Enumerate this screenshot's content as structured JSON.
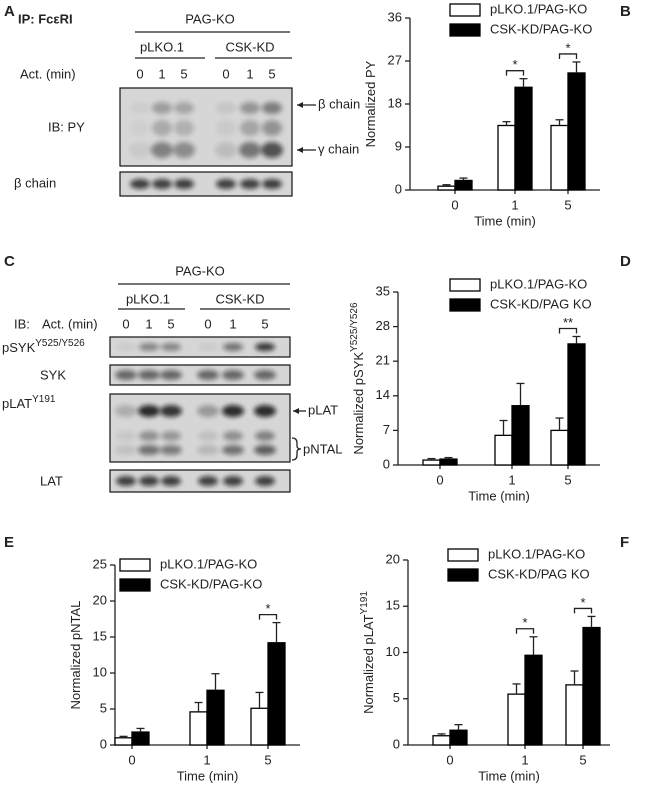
{
  "blot_a": {
    "panel_label": "A",
    "ip": "IP: FcεRI",
    "group": "PAG-KO",
    "conditions": [
      "pLKO.1",
      "CSK-KD"
    ],
    "act_label": "Act. (min)",
    "times": [
      "0",
      "1",
      "5",
      "0",
      "1",
      "5"
    ],
    "row_labels": [
      "IB: PY",
      "β chain"
    ],
    "arrows": [
      "β chain",
      "γ chain"
    ]
  },
  "blot_c": {
    "panel_label": "C",
    "group": "PAG-KO",
    "conditions": [
      "pLKO.1",
      "CSK-KD"
    ],
    "ib_label": "IB:",
    "act_label": "Act. (min)",
    "times": [
      "0",
      "1",
      "5",
      "0",
      "1",
      "5"
    ],
    "rows": [
      {
        "label": "pSYK",
        "sup": "Y525/Y526"
      },
      {
        "label": "SYK"
      },
      {
        "label": "pLAT",
        "sup": "Y191"
      },
      {
        "label": "LAT"
      }
    ],
    "arrows": [
      "pLAT",
      "pNTAL"
    ]
  },
  "chart_data": [
    {
      "type": "bar",
      "panel_label": "B",
      "ylabel": "Normalized PY",
      "xlabel": "Time (min)",
      "categories": [
        "0",
        "1",
        "5"
      ],
      "ylim": [
        0,
        36
      ],
      "yticks": [
        0,
        9,
        18,
        27,
        36
      ],
      "series": [
        {
          "name": "pLKO.1/PAG-KO",
          "color": "#ffffff",
          "values": [
            0.8,
            13.5,
            13.5
          ],
          "errors": [
            0.3,
            0.8,
            1.2
          ]
        },
        {
          "name": "CSK-KD/PAG-KO",
          "color": "#000000",
          "values": [
            2,
            21.5,
            24.5
          ],
          "errors": [
            0.5,
            1.8,
            2.3
          ]
        }
      ],
      "significance": [
        null,
        "*",
        "*"
      ]
    },
    {
      "type": "bar",
      "panel_label": "D",
      "ylabel": "Normalized pSYK",
      "ylabel_sup": "Y525/Y526",
      "xlabel": "Time (min)",
      "categories": [
        "0",
        "1",
        "5"
      ],
      "ylim": [
        0,
        35
      ],
      "yticks": [
        0,
        7,
        14,
        21,
        28,
        35
      ],
      "series": [
        {
          "name": "pLKO.1/PAG-KO",
          "color": "#ffffff",
          "values": [
            1,
            6,
            7
          ],
          "errors": [
            0.3,
            3,
            2.5
          ]
        },
        {
          "name": "CSK-KD/PAG KO",
          "color": "#000000",
          "values": [
            1.2,
            12,
            24.5
          ],
          "errors": [
            0.3,
            4.5,
            1.5
          ]
        }
      ],
      "significance": [
        null,
        null,
        "**"
      ]
    },
    {
      "type": "bar",
      "panel_label": "E",
      "ylabel": "Normalized pNTAL",
      "xlabel": "Time (min)",
      "categories": [
        "0",
        "1",
        "5"
      ],
      "ylim": [
        0,
        25
      ],
      "yticks": [
        0,
        5,
        10,
        15,
        20,
        25
      ],
      "series": [
        {
          "name": "pLKO.1/PAG-KO",
          "color": "#ffffff",
          "values": [
            1,
            4.6,
            5.1
          ],
          "errors": [
            0.2,
            1.3,
            2.2
          ]
        },
        {
          "name": "CSK-KD/PAG-KO",
          "color": "#000000",
          "values": [
            1.8,
            7.6,
            14.2
          ],
          "errors": [
            0.5,
            2.3,
            2.8
          ]
        }
      ],
      "significance": [
        null,
        null,
        "*"
      ]
    },
    {
      "type": "bar",
      "panel_label": "F",
      "ylabel": "Normalized pLAT",
      "ylabel_sup": "Y191",
      "xlabel": "Time (min)",
      "categories": [
        "0",
        "1",
        "5"
      ],
      "ylim": [
        0,
        20
      ],
      "yticks": [
        0,
        5,
        10,
        15,
        20
      ],
      "series": [
        {
          "name": "pLKO.1/PAG-KO",
          "color": "#ffffff",
          "values": [
            1,
            5.5,
            6.5
          ],
          "errors": [
            0.2,
            1.1,
            1.5
          ]
        },
        {
          "name": "CSK-KD/PAG KO",
          "color": "#000000",
          "values": [
            1.6,
            9.7,
            12.7
          ],
          "errors": [
            0.6,
            2,
            1.2
          ]
        }
      ],
      "significance": [
        null,
        "*",
        "*"
      ]
    }
  ]
}
